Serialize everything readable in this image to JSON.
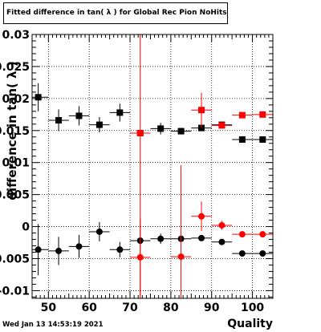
{
  "title": "Fitted difference in tan( λ ) for Global Rec Pion NoHits",
  "timestamp": "Wed Jan 13 14:53:19 2021",
  "chart_data": {
    "type": "scatter",
    "xlabel": "Quality",
    "ylabel": "difference in tan( λ )",
    "xlim": [
      46,
      105
    ],
    "ylim": [
      -0.0112,
      0.03
    ],
    "x_ticks": [
      50,
      60,
      70,
      80,
      90,
      100
    ],
    "x_tick_labels": [
      "50",
      "60",
      "70",
      "80",
      "90",
      "100"
    ],
    "y_ticks": [
      -0.01,
      -0.005,
      0,
      0.005,
      0.01,
      0.015,
      0.02,
      0.025,
      0.03
    ],
    "y_tick_labels": [
      "-0.01",
      "-0.005",
      "0",
      "0.005",
      "0.01",
      "0.015",
      "0.02",
      "0.025",
      "0.03"
    ],
    "grid": true,
    "series": [
      {
        "marker": "square",
        "color": "#000000",
        "points": [
          {
            "x": 47.5,
            "y": 0.0202,
            "xerr": 2.5,
            "yerr": 0.0022
          },
          {
            "x": 52.5,
            "y": 0.0166,
            "xerr": 2.5,
            "yerr": 0.0017
          },
          {
            "x": 57.5,
            "y": 0.0173,
            "xerr": 2.5,
            "yerr": 0.0015
          },
          {
            "x": 62.5,
            "y": 0.0159,
            "xerr": 2.5,
            "yerr": 0.0012
          },
          {
            "x": 67.5,
            "y": 0.0178,
            "xerr": 2.5,
            "yerr": 0.0014
          },
          {
            "x": 72.5,
            "y": 0.0146,
            "xerr": 2.5,
            "yerr": 0.0004
          },
          {
            "x": 77.5,
            "y": 0.0153,
            "xerr": 2.5,
            "yerr": 0.0009
          },
          {
            "x": 82.5,
            "y": 0.0149,
            "xerr": 2.5,
            "yerr": 0.0005
          },
          {
            "x": 87.5,
            "y": 0.0154,
            "xerr": 2.5,
            "yerr": 0.0004
          },
          {
            "x": 92.5,
            "y": 0.0159,
            "xerr": 2.5,
            "yerr": 0.0003
          },
          {
            "x": 97.5,
            "y": 0.0136,
            "xerr": 2.5,
            "yerr": 0.0002
          },
          {
            "x": 102.5,
            "y": 0.0136,
            "xerr": 2.5,
            "yerr": 0.0002
          }
        ]
      },
      {
        "marker": "square",
        "color": "#ff0000",
        "points": [
          {
            "x": 72.5,
            "y": 0.0146,
            "xerr": 2.5,
            "yerr": 0.03
          },
          {
            "x": 87.5,
            "y": 0.0182,
            "xerr": 2.5,
            "yerr": 0.0027
          },
          {
            "x": 92.5,
            "y": 0.0158,
            "xerr": 2.5,
            "yerr": 0.0005
          },
          {
            "x": 97.5,
            "y": 0.0174,
            "xerr": 2.5,
            "yerr": 0.0003
          },
          {
            "x": 102.5,
            "y": 0.0175,
            "xerr": 2.5,
            "yerr": 0.0002
          }
        ]
      },
      {
        "marker": "circle",
        "color": "#000000",
        "points": [
          {
            "x": 47.5,
            "y": -0.0036,
            "xerr": 2.5,
            "yerr": 0.004
          },
          {
            "x": 52.5,
            "y": -0.0038,
            "xerr": 2.5,
            "yerr": 0.0022
          },
          {
            "x": 57.5,
            "y": -0.0031,
            "xerr": 2.5,
            "yerr": 0.0018
          },
          {
            "x": 62.5,
            "y": -0.0008,
            "xerr": 2.5,
            "yerr": 0.0015
          },
          {
            "x": 67.5,
            "y": -0.0036,
            "xerr": 2.5,
            "yerr": 0.0012
          },
          {
            "x": 72.5,
            "y": -0.0022,
            "xerr": 2.5,
            "yerr": 0.0004
          },
          {
            "x": 77.5,
            "y": -0.0019,
            "xerr": 2.5,
            "yerr": 0.0008
          },
          {
            "x": 82.5,
            "y": -0.0019,
            "xerr": 2.5,
            "yerr": 0.0005
          },
          {
            "x": 87.5,
            "y": -0.0018,
            "xerr": 2.5,
            "yerr": 0.0004
          },
          {
            "x": 92.5,
            "y": -0.0024,
            "xerr": 2.5,
            "yerr": 0.0003
          },
          {
            "x": 97.5,
            "y": -0.0042,
            "xerr": 2.5,
            "yerr": 0.0002
          },
          {
            "x": 102.5,
            "y": -0.0042,
            "xerr": 2.5,
            "yerr": 0.0002
          }
        ]
      },
      {
        "marker": "circle",
        "color": "#ff0000",
        "points": [
          {
            "x": 72.5,
            "y": -0.0048,
            "xerr": 2.5,
            "yerr": 0.006
          },
          {
            "x": 82.5,
            "y": -0.0047,
            "xerr": 2.5,
            "yerr": 0.0143
          },
          {
            "x": 87.5,
            "y": 0.0016,
            "xerr": 2.5,
            "yerr": 0.0023
          },
          {
            "x": 92.5,
            "y": 0.0002,
            "xerr": 2.5,
            "yerr": 0.0007
          },
          {
            "x": 97.5,
            "y": -0.0012,
            "xerr": 2.5,
            "yerr": 0.0003
          },
          {
            "x": 102.5,
            "y": -0.0012,
            "xerr": 2.5,
            "yerr": 0.0002
          }
        ]
      }
    ]
  }
}
